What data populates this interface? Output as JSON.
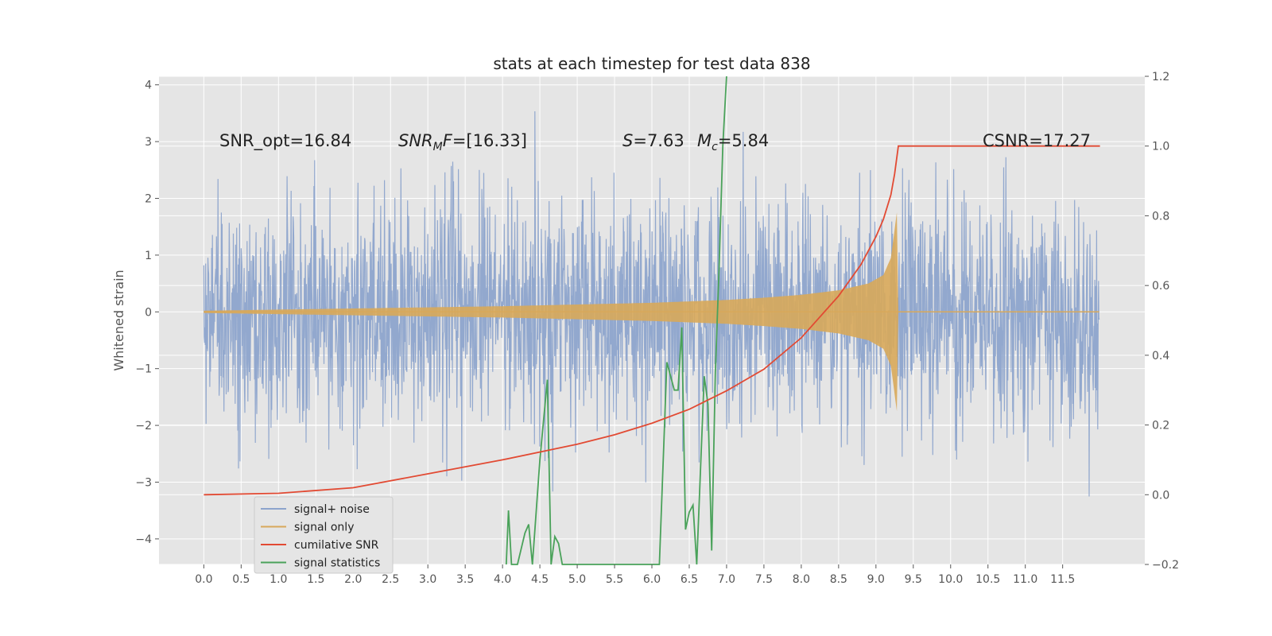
{
  "chart_data": {
    "type": "line",
    "title": "stats at each timestep for test data 838",
    "ylabel": "Whitened strain",
    "xlim": [
      -0.6,
      12.6
    ],
    "ylim": [
      -4.45,
      4.15
    ],
    "y2lim": [
      -0.2,
      1.2
    ],
    "xticks": [
      "0.0",
      "0.5",
      "1.0",
      "1.5",
      "2.0",
      "2.5",
      "3.0",
      "3.5",
      "4.0",
      "4.5",
      "5.0",
      "5.5",
      "6.0",
      "6.5",
      "7.0",
      "7.5",
      "8.0",
      "8.5",
      "9.0",
      "9.5",
      "10.0",
      "10.5",
      "11.0",
      "11.5"
    ],
    "yticks": [
      "−4",
      "−3",
      "−2",
      "−1",
      "0",
      "1",
      "2",
      "3",
      "4"
    ],
    "y2ticks": [
      "−0.2",
      "0.0",
      "0.2",
      "0.4",
      "0.6",
      "0.8",
      "1.0",
      "1.2"
    ],
    "grid": true,
    "legend_position": "lower-left",
    "annotations": {
      "snr_opt": "SNR_opt=16.84",
      "snr_mf_sym": "SNR",
      "snr_mf_sub": "M",
      "snr_mf_sym2": "F",
      "snr_mf_val": "=[16.33]",
      "s_sym": "S",
      "s_val": "=7.63",
      "mc_sym": "M",
      "mc_sub": "c",
      "mc_val": "=5.84",
      "csnr": "CSNR=17.27"
    },
    "series": [
      {
        "name": "signal+ noise",
        "color": "#8da4cc",
        "description_values": {
          "x_start": 0.0,
          "x_end": 11.99,
          "noise_std": 1.0
        }
      },
      {
        "name": "signal only",
        "color": "#d8a85a",
        "envelope": {
          "x": [
            0.0,
            2.0,
            4.0,
            5.0,
            6.0,
            7.0,
            7.5,
            8.0,
            8.5,
            8.9,
            9.1,
            9.2,
            9.28,
            9.3,
            12.0
          ],
          "amplitude": [
            0.02,
            0.06,
            0.1,
            0.13,
            0.16,
            0.21,
            0.25,
            0.3,
            0.38,
            0.5,
            0.65,
            0.95,
            1.75,
            0.0,
            0.0
          ]
        }
      },
      {
        "name": "cumilative SNR",
        "color": "#e24a33",
        "axis": "right",
        "x": [
          0.0,
          1.0,
          2.0,
          3.0,
          4.0,
          5.0,
          5.5,
          6.0,
          6.5,
          7.0,
          7.5,
          8.0,
          8.5,
          8.8,
          9.0,
          9.1,
          9.2,
          9.25,
          9.3,
          12.0
        ],
        "y": [
          0.0,
          0.004,
          0.02,
          0.06,
          0.1,
          0.145,
          0.172,
          0.205,
          0.245,
          0.298,
          0.36,
          0.45,
          0.57,
          0.66,
          0.74,
          0.79,
          0.86,
          0.92,
          1.0,
          1.0
        ]
      },
      {
        "name": "signal statistics",
        "color": "#4aa25a",
        "axis": "right",
        "x": [
          4.05,
          4.08,
          4.12,
          4.2,
          4.3,
          4.35,
          4.4,
          4.5,
          4.6,
          4.65,
          4.7,
          4.75,
          4.8,
          6.1,
          6.2,
          6.3,
          6.35,
          6.4,
          6.45,
          6.5,
          6.55,
          6.6,
          6.7,
          6.75,
          6.8,
          6.85,
          6.9,
          6.95,
          7.0
        ],
        "y": [
          -0.2,
          -0.045,
          -0.2,
          -0.2,
          -0.11,
          -0.085,
          -0.2,
          0.1,
          0.33,
          -0.2,
          -0.12,
          -0.14,
          -0.2,
          -0.2,
          0.38,
          0.3,
          0.3,
          0.48,
          -0.1,
          -0.05,
          -0.03,
          -0.2,
          0.34,
          0.26,
          -0.16,
          0.35,
          0.65,
          1.0,
          1.2
        ]
      }
    ]
  },
  "legend": {
    "items": [
      {
        "label": "signal+ noise",
        "color": "#8da4cc"
      },
      {
        "label": "signal only",
        "color": "#d8a85a"
      },
      {
        "label": "cumilative SNR",
        "color": "#e24a33"
      },
      {
        "label": "signal statistics",
        "color": "#4aa25a"
      }
    ]
  }
}
